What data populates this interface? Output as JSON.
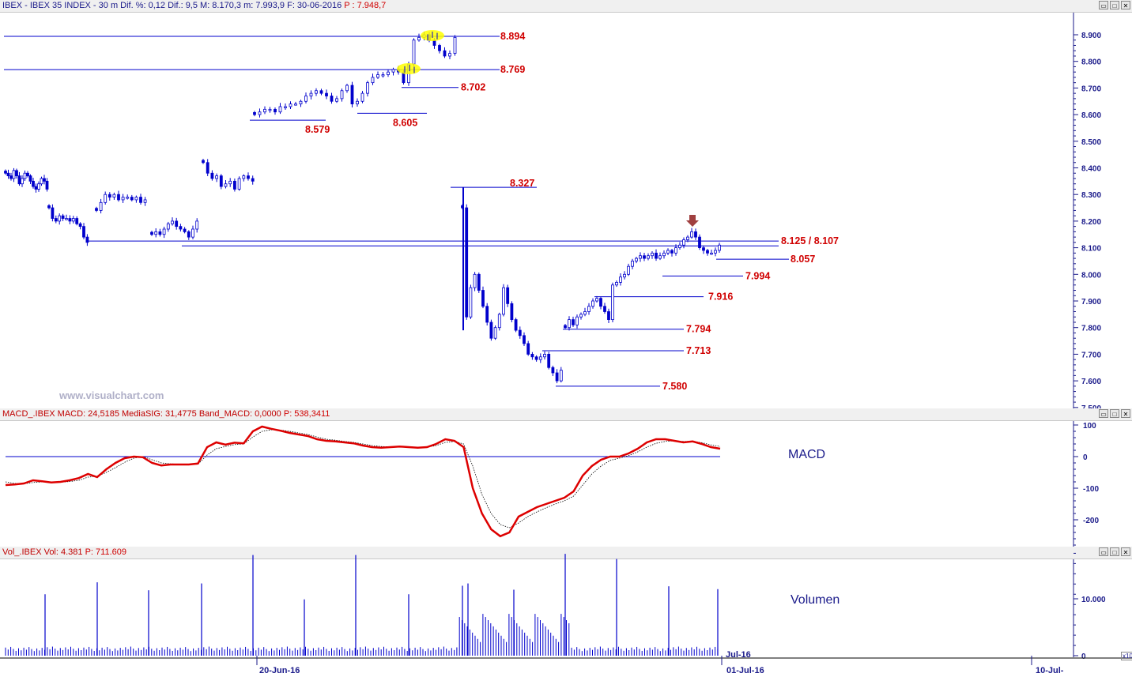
{
  "price_header": {
    "title": "IBEX - IBEX 35 INDEX -  30 m  Dif. %: 0,12  Dif.: 9,5  M: 8.170,3  m: 7.993,9  F: 30-06-2016",
    "p": "P : 7.948,7"
  },
  "macd_header": {
    "title": "MACD_.IBEX MACD: 24,5185  MediaSIG: 31,4775  Band_MACD: 0,0000",
    "p": "P: 538,3411"
  },
  "vol_header": {
    "title": "Vol_.IBEX Vol: 4.381",
    "p": "P: 711.609"
  },
  "watermark": "www.visualchart.com",
  "macd_label": "MACD",
  "vol_label": "Volumen",
  "x_axis": [
    "20-Jun-16",
    "01-Jul-16",
    "10-Jul-"
  ],
  "x_edge_label": "Jul-16",
  "vol_scale_tag": "x10",
  "colors": {
    "candle": "#0000cc",
    "macd": "#dd0000",
    "level_label": "#d00000",
    "axis": "#1a1a8a"
  },
  "chart_data": [
    {
      "type": "candlestick",
      "title": "IBEX 35 INDEX 30 m",
      "y_ticks": [
        "8.900",
        "8.800",
        "8.700",
        "8.600",
        "8.500",
        "8.400",
        "8.300",
        "8.200",
        "8.100",
        "8.000",
        "7.900",
        "7.800",
        "7.700",
        "7.600",
        "7.500"
      ],
      "ylim": [
        7500,
        8950
      ],
      "levels": [
        {
          "label": "8.894",
          "value": 8894
        },
        {
          "label": "8.769",
          "value": 8769
        },
        {
          "label": "8.702",
          "value": 8702
        },
        {
          "label": "8.605",
          "value": 8605
        },
        {
          "label": "8.579",
          "value": 8579
        },
        {
          "label": "8.327",
          "value": 8327
        },
        {
          "label": "8.125 / 8.107",
          "value": 8125,
          "value2": 8107
        },
        {
          "label": "8.057",
          "value": 8057
        },
        {
          "label": "7.994",
          "value": 7994
        },
        {
          "label": "7.916",
          "value": 7916
        },
        {
          "label": "7.794",
          "value": 7794
        },
        {
          "label": "7.713",
          "value": 7713
        },
        {
          "label": "7.580",
          "value": 7580
        }
      ],
      "segments": [
        {
          "values": [
            8380,
            8370,
            8360,
            8390,
            8370,
            8340,
            8360,
            8380,
            8370,
            8350,
            8330,
            8320,
            8340,
            8360,
            8350,
            8320
          ]
        },
        {
          "values": [
            8250,
            8210,
            8200,
            8220,
            8210,
            8210,
            8200,
            8210,
            8190,
            8180,
            8140,
            8120
          ]
        },
        {
          "values": [
            8240,
            8270,
            8300,
            8290,
            8300,
            8280,
            8290,
            8290,
            8280,
            8290,
            8270,
            8280
          ]
        },
        {
          "values": [
            8150,
            8160,
            8150,
            8170,
            8190,
            8200,
            8180,
            8170,
            8160,
            8140,
            8170,
            8200
          ]
        },
        {
          "values": [
            8420,
            8380,
            8360,
            8370,
            8330,
            8340,
            8350,
            8320,
            8360,
            8370,
            8360,
            8350
          ]
        },
        {
          "values": [
            8600,
            8610,
            8620,
            8620,
            8610,
            8630,
            8630,
            8640,
            8640,
            8650,
            8670,
            8680,
            8690,
            8680,
            8670,
            8650,
            8660,
            8690,
            8710,
            8640,
            8650,
            8680,
            8720,
            8740,
            8750,
            8750,
            8760,
            8770,
            8760,
            8720,
            8790,
            8880,
            8890,
            8900,
            8880,
            8860,
            8840,
            8820,
            8830,
            8890
          ]
        },
        {
          "values": [
            8250,
            7840,
            7950,
            8000,
            7940,
            7880,
            7820,
            7760,
            7800,
            7850,
            7950,
            7890,
            7830,
            7790,
            7770,
            7740,
            7700,
            7690,
            7680,
            7690,
            7700,
            7650,
            7630,
            7600,
            7640
          ]
        },
        {
          "values": [
            7800,
            7830,
            7810,
            7840,
            7850,
            7860,
            7880,
            7900,
            7910,
            7880,
            7860,
            7830,
            7960,
            7970,
            7990,
            8000,
            8030,
            8050,
            8060,
            8070,
            8060,
            8070,
            8080,
            8060,
            8070,
            8080,
            8090,
            8080,
            8100,
            8110,
            8130,
            8140,
            8160,
            8140,
            8100,
            8090,
            8080,
            8080,
            8090,
            8110
          ]
        }
      ]
    },
    {
      "type": "line",
      "title": "MACD",
      "y_ticks": [
        "100",
        "0",
        "-100",
        "-200"
      ],
      "ylim": [
        -280,
        105
      ],
      "series": [
        {
          "name": "MACD",
          "values": [
            -90,
            -88,
            -85,
            -75,
            -78,
            -82,
            -80,
            -75,
            -68,
            -55,
            -65,
            -40,
            -20,
            -5,
            0,
            -2,
            -20,
            -28,
            -25,
            -25,
            -25,
            -22,
            30,
            45,
            38,
            44,
            42,
            80,
            95,
            88,
            82,
            75,
            70,
            65,
            55,
            50,
            48,
            45,
            42,
            35,
            30,
            28,
            30,
            32,
            30,
            28,
            30,
            40,
            55,
            50,
            30,
            -100,
            -180,
            -230,
            -252,
            -240,
            -190,
            -175,
            -160,
            -150,
            -140,
            -130,
            -110,
            -60,
            -30,
            -10,
            0,
            0,
            10,
            25,
            45,
            55,
            55,
            50,
            45,
            48,
            40,
            30,
            25
          ]
        },
        {
          "name": "MediaSIG",
          "values": [
            -80,
            -85,
            -86,
            -82,
            -80,
            -81,
            -81,
            -79,
            -75,
            -65,
            -62,
            -50,
            -35,
            -18,
            -5,
            0,
            -10,
            -20,
            -23,
            -24,
            -25,
            -24,
            5,
            25,
            32,
            38,
            40,
            62,
            80,
            85,
            84,
            80,
            75,
            70,
            62,
            55,
            52,
            48,
            45,
            40,
            35,
            32,
            31,
            31,
            31,
            30,
            30,
            35,
            45,
            48,
            40,
            -30,
            -120,
            -180,
            -215,
            -225,
            -210,
            -190,
            -175,
            -162,
            -150,
            -140,
            -125,
            -90,
            -55,
            -30,
            -12,
            -5,
            3,
            15,
            30,
            42,
            48,
            50,
            48,
            48,
            44,
            37,
            32
          ]
        }
      ]
    },
    {
      "type": "bar",
      "title": "Volumen",
      "y_ticks": [
        "10.000",
        "0"
      ],
      "ylim": [
        0,
        18000
      ],
      "spikes": [
        10800,
        12900,
        11500,
        12700,
        17700,
        9900,
        17700,
        10800,
        12300,
        12700,
        11600,
        17900,
        17000,
        12200,
        11700
      ]
    }
  ]
}
